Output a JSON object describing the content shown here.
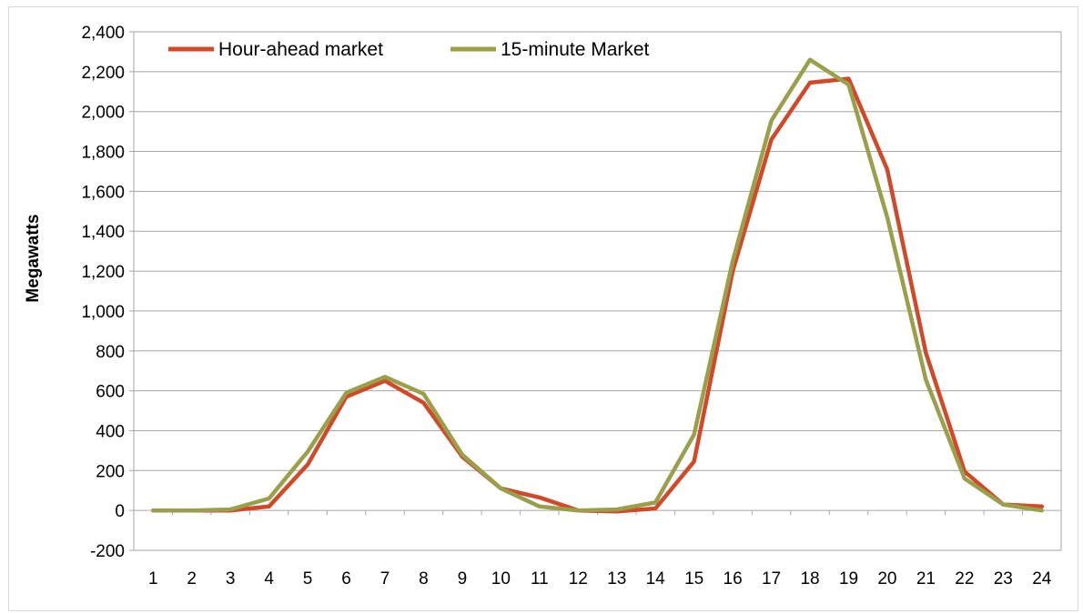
{
  "chart_data": {
    "type": "line",
    "title": "",
    "xlabel": "",
    "ylabel": "Megawatts",
    "ylim": [
      -200,
      2400
    ],
    "yticks": [
      -200,
      0,
      200,
      400,
      600,
      800,
      1000,
      1200,
      1400,
      1600,
      1800,
      2000,
      2200,
      2400
    ],
    "ytick_labels": [
      "-200",
      "0",
      "200",
      "400",
      "600",
      "800",
      "1,000",
      "1,200",
      "1,400",
      "1,600",
      "1,800",
      "2,000",
      "2,200",
      "2,400"
    ],
    "categories": [
      "1",
      "2",
      "3",
      "4",
      "5",
      "6",
      "7",
      "8",
      "9",
      "10",
      "11",
      "12",
      "13",
      "14",
      "15",
      "16",
      "17",
      "18",
      "19",
      "20",
      "21",
      "22",
      "23",
      "24"
    ],
    "grid": true,
    "legend_position": "top-left",
    "series": [
      {
        "name": "Hour-ahead market",
        "color": "#d04a2a",
        "values": [
          0,
          0,
          0,
          20,
          230,
          570,
          650,
          540,
          270,
          110,
          65,
          0,
          -5,
          10,
          245,
          1200,
          1860,
          2145,
          2165,
          1710,
          790,
          195,
          30,
          20
        ]
      },
      {
        "name": "15-minute Market",
        "color": "#9aa04a",
        "values": [
          0,
          0,
          5,
          60,
          295,
          590,
          670,
          585,
          280,
          110,
          20,
          0,
          5,
          40,
          380,
          1250,
          1955,
          2260,
          2135,
          1470,
          655,
          160,
          30,
          0
        ]
      }
    ]
  }
}
